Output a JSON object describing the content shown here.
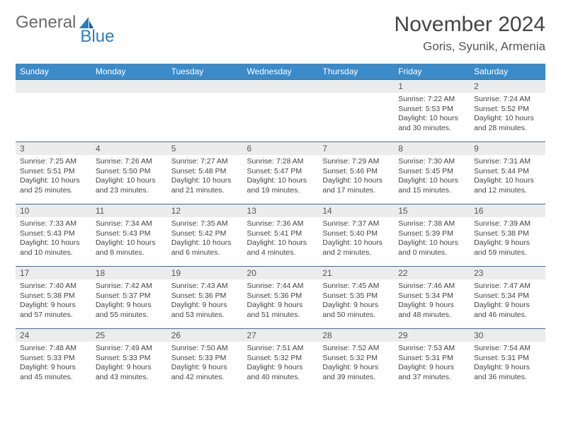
{
  "logo": {
    "word1": "General",
    "word2": "Blue"
  },
  "title": {
    "month": "November 2024",
    "location": "Goris, Syunik, Armenia"
  },
  "colors": {
    "header_bg": "#3b8bc9",
    "header_text": "#ffffff",
    "cell_border": "#4a6a8a",
    "daynum_bg": "#ececec",
    "logo_gray": "#6b6b6b",
    "logo_blue": "#2b7cc0",
    "body_text": "#444444"
  },
  "weekdays": [
    "Sunday",
    "Monday",
    "Tuesday",
    "Wednesday",
    "Thursday",
    "Friday",
    "Saturday"
  ],
  "grid": [
    [
      {
        "n": "",
        "sr": "",
        "ss": "",
        "d1": "",
        "d2": ""
      },
      {
        "n": "",
        "sr": "",
        "ss": "",
        "d1": "",
        "d2": ""
      },
      {
        "n": "",
        "sr": "",
        "ss": "",
        "d1": "",
        "d2": ""
      },
      {
        "n": "",
        "sr": "",
        "ss": "",
        "d1": "",
        "d2": ""
      },
      {
        "n": "",
        "sr": "",
        "ss": "",
        "d1": "",
        "d2": ""
      },
      {
        "n": "1",
        "sr": "Sunrise: 7:22 AM",
        "ss": "Sunset: 5:53 PM",
        "d1": "Daylight: 10 hours",
        "d2": "and 30 minutes."
      },
      {
        "n": "2",
        "sr": "Sunrise: 7:24 AM",
        "ss": "Sunset: 5:52 PM",
        "d1": "Daylight: 10 hours",
        "d2": "and 28 minutes."
      }
    ],
    [
      {
        "n": "3",
        "sr": "Sunrise: 7:25 AM",
        "ss": "Sunset: 5:51 PM",
        "d1": "Daylight: 10 hours",
        "d2": "and 25 minutes."
      },
      {
        "n": "4",
        "sr": "Sunrise: 7:26 AM",
        "ss": "Sunset: 5:50 PM",
        "d1": "Daylight: 10 hours",
        "d2": "and 23 minutes."
      },
      {
        "n": "5",
        "sr": "Sunrise: 7:27 AM",
        "ss": "Sunset: 5:48 PM",
        "d1": "Daylight: 10 hours",
        "d2": "and 21 minutes."
      },
      {
        "n": "6",
        "sr": "Sunrise: 7:28 AM",
        "ss": "Sunset: 5:47 PM",
        "d1": "Daylight: 10 hours",
        "d2": "and 19 minutes."
      },
      {
        "n": "7",
        "sr": "Sunrise: 7:29 AM",
        "ss": "Sunset: 5:46 PM",
        "d1": "Daylight: 10 hours",
        "d2": "and 17 minutes."
      },
      {
        "n": "8",
        "sr": "Sunrise: 7:30 AM",
        "ss": "Sunset: 5:45 PM",
        "d1": "Daylight: 10 hours",
        "d2": "and 15 minutes."
      },
      {
        "n": "9",
        "sr": "Sunrise: 7:31 AM",
        "ss": "Sunset: 5:44 PM",
        "d1": "Daylight: 10 hours",
        "d2": "and 12 minutes."
      }
    ],
    [
      {
        "n": "10",
        "sr": "Sunrise: 7:33 AM",
        "ss": "Sunset: 5:43 PM",
        "d1": "Daylight: 10 hours",
        "d2": "and 10 minutes."
      },
      {
        "n": "11",
        "sr": "Sunrise: 7:34 AM",
        "ss": "Sunset: 5:43 PM",
        "d1": "Daylight: 10 hours",
        "d2": "and 8 minutes."
      },
      {
        "n": "12",
        "sr": "Sunrise: 7:35 AM",
        "ss": "Sunset: 5:42 PM",
        "d1": "Daylight: 10 hours",
        "d2": "and 6 minutes."
      },
      {
        "n": "13",
        "sr": "Sunrise: 7:36 AM",
        "ss": "Sunset: 5:41 PM",
        "d1": "Daylight: 10 hours",
        "d2": "and 4 minutes."
      },
      {
        "n": "14",
        "sr": "Sunrise: 7:37 AM",
        "ss": "Sunset: 5:40 PM",
        "d1": "Daylight: 10 hours",
        "d2": "and 2 minutes."
      },
      {
        "n": "15",
        "sr": "Sunrise: 7:38 AM",
        "ss": "Sunset: 5:39 PM",
        "d1": "Daylight: 10 hours",
        "d2": "and 0 minutes."
      },
      {
        "n": "16",
        "sr": "Sunrise: 7:39 AM",
        "ss": "Sunset: 5:38 PM",
        "d1": "Daylight: 9 hours",
        "d2": "and 59 minutes."
      }
    ],
    [
      {
        "n": "17",
        "sr": "Sunrise: 7:40 AM",
        "ss": "Sunset: 5:38 PM",
        "d1": "Daylight: 9 hours",
        "d2": "and 57 minutes."
      },
      {
        "n": "18",
        "sr": "Sunrise: 7:42 AM",
        "ss": "Sunset: 5:37 PM",
        "d1": "Daylight: 9 hours",
        "d2": "and 55 minutes."
      },
      {
        "n": "19",
        "sr": "Sunrise: 7:43 AM",
        "ss": "Sunset: 5:36 PM",
        "d1": "Daylight: 9 hours",
        "d2": "and 53 minutes."
      },
      {
        "n": "20",
        "sr": "Sunrise: 7:44 AM",
        "ss": "Sunset: 5:36 PM",
        "d1": "Daylight: 9 hours",
        "d2": "and 51 minutes."
      },
      {
        "n": "21",
        "sr": "Sunrise: 7:45 AM",
        "ss": "Sunset: 5:35 PM",
        "d1": "Daylight: 9 hours",
        "d2": "and 50 minutes."
      },
      {
        "n": "22",
        "sr": "Sunrise: 7:46 AM",
        "ss": "Sunset: 5:34 PM",
        "d1": "Daylight: 9 hours",
        "d2": "and 48 minutes."
      },
      {
        "n": "23",
        "sr": "Sunrise: 7:47 AM",
        "ss": "Sunset: 5:34 PM",
        "d1": "Daylight: 9 hours",
        "d2": "and 46 minutes."
      }
    ],
    [
      {
        "n": "24",
        "sr": "Sunrise: 7:48 AM",
        "ss": "Sunset: 5:33 PM",
        "d1": "Daylight: 9 hours",
        "d2": "and 45 minutes."
      },
      {
        "n": "25",
        "sr": "Sunrise: 7:49 AM",
        "ss": "Sunset: 5:33 PM",
        "d1": "Daylight: 9 hours",
        "d2": "and 43 minutes."
      },
      {
        "n": "26",
        "sr": "Sunrise: 7:50 AM",
        "ss": "Sunset: 5:33 PM",
        "d1": "Daylight: 9 hours",
        "d2": "and 42 minutes."
      },
      {
        "n": "27",
        "sr": "Sunrise: 7:51 AM",
        "ss": "Sunset: 5:32 PM",
        "d1": "Daylight: 9 hours",
        "d2": "and 40 minutes."
      },
      {
        "n": "28",
        "sr": "Sunrise: 7:52 AM",
        "ss": "Sunset: 5:32 PM",
        "d1": "Daylight: 9 hours",
        "d2": "and 39 minutes."
      },
      {
        "n": "29",
        "sr": "Sunrise: 7:53 AM",
        "ss": "Sunset: 5:31 PM",
        "d1": "Daylight: 9 hours",
        "d2": "and 37 minutes."
      },
      {
        "n": "30",
        "sr": "Sunrise: 7:54 AM",
        "ss": "Sunset: 5:31 PM",
        "d1": "Daylight: 9 hours",
        "d2": "and 36 minutes."
      }
    ]
  ]
}
